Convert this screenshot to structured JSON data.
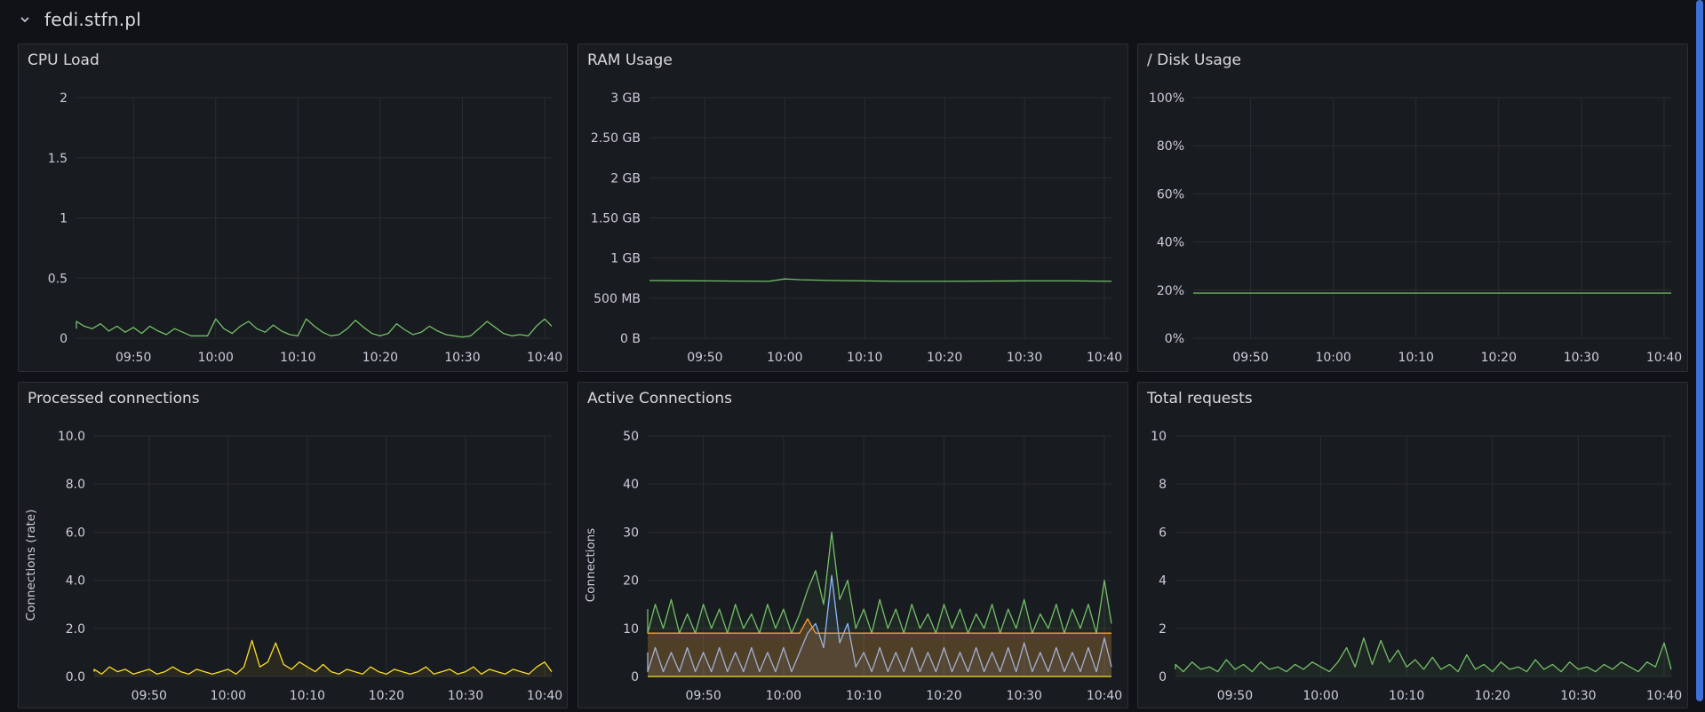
{
  "row": {
    "title": "fedi.stfn.pl",
    "collapse_icon": "chevron-down-icon"
  },
  "colors": {
    "green": "#73bf69",
    "yellow": "#fade2a",
    "blue": "#8ab8ff",
    "orange": "#ff9830",
    "grid": "#2a2d33"
  },
  "panels": [
    {
      "id": "cpu",
      "title": "CPU Load",
      "ylabel": "",
      "y_ticks": [
        {
          "v": 2,
          "l": "2"
        },
        {
          "v": 1.5,
          "l": "1.5"
        },
        {
          "v": 1,
          "l": "1"
        },
        {
          "v": 0.5,
          "l": "0.5"
        },
        {
          "v": 0,
          "l": "0"
        }
      ],
      "ylim": [
        0,
        2
      ],
      "x_ticks": [
        "09:50",
        "10:00",
        "10:10",
        "10:20",
        "10:30",
        "10:40"
      ],
      "chart_data": {
        "type": "line",
        "series": [
          {
            "color": "#73bf69",
            "x": [
              "09:42",
              "09:43",
              "09:44",
              "09:45",
              "09:46",
              "09:47",
              "09:48",
              "09:49",
              "09:50",
              "09:51",
              "09:52",
              "09:53",
              "09:54",
              "09:55",
              "09:56",
              "09:57",
              "09:58",
              "09:59",
              "10:00",
              "10:01",
              "10:02",
              "10:03",
              "10:04",
              "10:05",
              "10:06",
              "10:07",
              "10:08",
              "10:09",
              "10:10",
              "10:11",
              "10:12",
              "10:13",
              "10:14",
              "10:15",
              "10:16",
              "10:17",
              "10:18",
              "10:19",
              "10:20",
              "10:21",
              "10:22",
              "10:23",
              "10:24",
              "10:25",
              "10:26",
              "10:27",
              "10:28",
              "10:29",
              "10:30",
              "10:31",
              "10:32",
              "10:33",
              "10:34",
              "10:35",
              "10:36",
              "10:37",
              "10:38",
              "10:39",
              "10:40",
              "10:41"
            ],
            "values": [
              0.08,
              0.14,
              0.1,
              0.08,
              0.12,
              0.06,
              0.1,
              0.05,
              0.09,
              0.04,
              0.1,
              0.06,
              0.03,
              0.08,
              0.05,
              0.02,
              0.02,
              0.02,
              0.16,
              0.08,
              0.04,
              0.1,
              0.14,
              0.08,
              0.05,
              0.11,
              0.06,
              0.03,
              0.02,
              0.16,
              0.1,
              0.05,
              0.02,
              0.03,
              0.08,
              0.15,
              0.09,
              0.04,
              0.02,
              0.04,
              0.12,
              0.07,
              0.03,
              0.05,
              0.1,
              0.06,
              0.03,
              0.02,
              0.01,
              0.02,
              0.08,
              0.14,
              0.09,
              0.04,
              0.02,
              0.03,
              0.02,
              0.1,
              0.16,
              0.1
            ]
          }
        ]
      }
    },
    {
      "id": "ram",
      "title": "RAM Usage",
      "ylabel": "",
      "y_ticks": [
        {
          "v": 3,
          "l": "3 GB"
        },
        {
          "v": 2.5,
          "l": "2.50 GB"
        },
        {
          "v": 2,
          "l": "2 GB"
        },
        {
          "v": 1.5,
          "l": "1.50 GB"
        },
        {
          "v": 1,
          "l": "1 GB"
        },
        {
          "v": 0.5,
          "l": "500 MB"
        },
        {
          "v": 0,
          "l": "0 B"
        }
      ],
      "ylim": [
        0,
        3
      ],
      "x_ticks": [
        "09:50",
        "10:00",
        "10:10",
        "10:20",
        "10:30",
        "10:40"
      ],
      "chart_data": {
        "type": "line",
        "series": [
          {
            "color": "#73bf69",
            "x": [
              "09:42",
              "09:50",
              "09:58",
              "10:00",
              "10:02",
              "10:06",
              "10:10",
              "10:14",
              "10:20",
              "10:30",
              "10:36",
              "10:41"
            ],
            "values": [
              0.72,
              0.715,
              0.71,
              0.74,
              0.73,
              0.72,
              0.715,
              0.71,
              0.71,
              0.715,
              0.715,
              0.71
            ]
          }
        ]
      }
    },
    {
      "id": "disk",
      "title": "/ Disk Usage",
      "ylabel": "",
      "y_ticks": [
        {
          "v": 100,
          "l": "100%"
        },
        {
          "v": 80,
          "l": "80%"
        },
        {
          "v": 60,
          "l": "60%"
        },
        {
          "v": 40,
          "l": "40%"
        },
        {
          "v": 20,
          "l": "20%"
        },
        {
          "v": 0,
          "l": "0%"
        }
      ],
      "ylim": [
        0,
        100
      ],
      "x_ticks": [
        "09:50",
        "10:00",
        "10:10",
        "10:20",
        "10:30",
        "10:40"
      ],
      "chart_data": {
        "type": "line",
        "series": [
          {
            "color": "#73bf69",
            "x": [
              "09:42",
              "10:41"
            ],
            "values": [
              18.8,
              18.8
            ]
          }
        ]
      }
    },
    {
      "id": "proc",
      "title": "Processed connections",
      "ylabel": "Connections (rate)",
      "y_ticks": [
        {
          "v": 10,
          "l": "10.0"
        },
        {
          "v": 8,
          "l": "8.0"
        },
        {
          "v": 6,
          "l": "6.0"
        },
        {
          "v": 4,
          "l": "4.0"
        },
        {
          "v": 2,
          "l": "2.0"
        },
        {
          "v": 0,
          "l": "0.0"
        }
      ],
      "ylim": [
        0,
        10
      ],
      "x_ticks": [
        "09:50",
        "10:00",
        "10:10",
        "10:20",
        "10:30",
        "10:40"
      ],
      "chart_data": {
        "type": "area",
        "series": [
          {
            "color": "#fade2a",
            "x": [
              "09:42",
              "09:43",
              "09:44",
              "09:45",
              "09:46",
              "09:47",
              "09:48",
              "09:49",
              "09:50",
              "09:51",
              "09:52",
              "09:53",
              "09:54",
              "09:55",
              "09:56",
              "09:57",
              "09:58",
              "09:59",
              "10:00",
              "10:01",
              "10:02",
              "10:03",
              "10:04",
              "10:05",
              "10:06",
              "10:07",
              "10:08",
              "10:09",
              "10:10",
              "10:11",
              "10:12",
              "10:13",
              "10:14",
              "10:15",
              "10:16",
              "10:17",
              "10:18",
              "10:19",
              "10:20",
              "10:21",
              "10:22",
              "10:23",
              "10:24",
              "10:25",
              "10:26",
              "10:27",
              "10:28",
              "10:29",
              "10:30",
              "10:31",
              "10:32",
              "10:33",
              "10:34",
              "10:35",
              "10:36",
              "10:37",
              "10:38",
              "10:39",
              "10:40",
              "10:41"
            ],
            "values": [
              0.2,
              0.3,
              0.1,
              0.4,
              0.2,
              0.3,
              0.1,
              0.2,
              0.3,
              0.1,
              0.2,
              0.4,
              0.2,
              0.1,
              0.3,
              0.2,
              0.1,
              0.2,
              0.3,
              0.1,
              0.4,
              1.5,
              0.4,
              0.6,
              1.4,
              0.5,
              0.3,
              0.6,
              0.4,
              0.2,
              0.5,
              0.2,
              0.1,
              0.3,
              0.2,
              0.1,
              0.4,
              0.2,
              0.1,
              0.3,
              0.2,
              0.1,
              0.2,
              0.4,
              0.1,
              0.2,
              0.3,
              0.1,
              0.2,
              0.4,
              0.1,
              0.3,
              0.2,
              0.1,
              0.3,
              0.2,
              0.1,
              0.4,
              0.6,
              0.2
            ]
          }
        ]
      }
    },
    {
      "id": "active",
      "title": "Active Connections",
      "ylabel": "Connections",
      "y_ticks": [
        {
          "v": 50,
          "l": "50"
        },
        {
          "v": 40,
          "l": "40"
        },
        {
          "v": 30,
          "l": "30"
        },
        {
          "v": 20,
          "l": "20"
        },
        {
          "v": 10,
          "l": "10"
        },
        {
          "v": 0,
          "l": "0"
        }
      ],
      "ylim": [
        0,
        50
      ],
      "x_ticks": [
        "09:50",
        "10:00",
        "10:10",
        "10:20",
        "10:30",
        "10:40"
      ],
      "chart_data": {
        "type": "area",
        "series": [
          {
            "color": "#73bf69",
            "x": [
              "09:42",
              "09:43",
              "09:44",
              "09:45",
              "09:46",
              "09:47",
              "09:48",
              "09:49",
              "09:50",
              "09:51",
              "09:52",
              "09:53",
              "09:54",
              "09:55",
              "09:56",
              "09:57",
              "09:58",
              "09:59",
              "10:00",
              "10:01",
              "10:02",
              "10:03",
              "10:04",
              "10:05",
              "10:06",
              "10:07",
              "10:08",
              "10:09",
              "10:10",
              "10:11",
              "10:12",
              "10:13",
              "10:14",
              "10:15",
              "10:16",
              "10:17",
              "10:18",
              "10:19",
              "10:20",
              "10:21",
              "10:22",
              "10:23",
              "10:24",
              "10:25",
              "10:26",
              "10:27",
              "10:28",
              "10:29",
              "10:30",
              "10:31",
              "10:32",
              "10:33",
              "10:34",
              "10:35",
              "10:36",
              "10:37",
              "10:38",
              "10:39",
              "10:40",
              "10:41"
            ],
            "values": [
              14,
              9,
              15,
              10,
              16,
              9,
              13,
              9,
              15,
              10,
              14,
              9,
              15,
              10,
              13,
              9,
              15,
              10,
              14,
              9,
              13,
              18,
              22,
              15,
              30,
              16,
              20,
              10,
              14,
              9,
              16,
              10,
              14,
              9,
              15,
              10,
              13,
              9,
              15,
              10,
              14,
              9,
              13,
              10,
              15,
              9,
              14,
              10,
              16,
              9,
              13,
              10,
              15,
              9,
              14,
              10,
              15,
              9,
              20,
              11
            ]
          },
          {
            "color": "#8ab8ff",
            "x": [
              "09:42",
              "09:43",
              "09:44",
              "09:45",
              "09:46",
              "09:47",
              "09:48",
              "09:49",
              "09:50",
              "09:51",
              "09:52",
              "09:53",
              "09:54",
              "09:55",
              "09:56",
              "09:57",
              "09:58",
              "09:59",
              "10:00",
              "10:01",
              "10:02",
              "10:03",
              "10:04",
              "10:05",
              "10:06",
              "10:07",
              "10:08",
              "10:09",
              "10:10",
              "10:11",
              "10:12",
              "10:13",
              "10:14",
              "10:15",
              "10:16",
              "10:17",
              "10:18",
              "10:19",
              "10:20",
              "10:21",
              "10:22",
              "10:23",
              "10:24",
              "10:25",
              "10:26",
              "10:27",
              "10:28",
              "10:29",
              "10:30",
              "10:31",
              "10:32",
              "10:33",
              "10:34",
              "10:35",
              "10:36",
              "10:37",
              "10:38",
              "10:39",
              "10:40",
              "10:41"
            ],
            "values": [
              5,
              1,
              6,
              1,
              5,
              1,
              6,
              1,
              5,
              1,
              6,
              1,
              5,
              1,
              6,
              1,
              5,
              1,
              6,
              1,
              5,
              9,
              11,
              6,
              21,
              7,
              11,
              2,
              5,
              1,
              6,
              1,
              5,
              1,
              6,
              1,
              5,
              1,
              6,
              1,
              5,
              1,
              6,
              1,
              5,
              1,
              6,
              1,
              7,
              1,
              5,
              1,
              6,
              1,
              5,
              1,
              6,
              1,
              8,
              2
            ]
          },
          {
            "color": "#ff9830",
            "x": [
              "09:42",
              "10:00",
              "10:02",
              "10:03",
              "10:04",
              "10:05",
              "10:41"
            ],
            "values": [
              9,
              9,
              9,
              12,
              9,
              9,
              9
            ]
          },
          {
            "color": "#fade2a",
            "x": [
              "09:42",
              "10:41"
            ],
            "values": [
              0,
              0
            ]
          }
        ]
      }
    },
    {
      "id": "total",
      "title": "Total requests",
      "ylabel": "",
      "y_ticks": [
        {
          "v": 10,
          "l": "10"
        },
        {
          "v": 8,
          "l": "8"
        },
        {
          "v": 6,
          "l": "6"
        },
        {
          "v": 4,
          "l": "4"
        },
        {
          "v": 2,
          "l": "2"
        },
        {
          "v": 0,
          "l": "0"
        }
      ],
      "ylim": [
        0,
        10
      ],
      "x_ticks": [
        "09:50",
        "10:00",
        "10:10",
        "10:20",
        "10:30",
        "10:40"
      ],
      "chart_data": {
        "type": "area",
        "series": [
          {
            "color": "#73bf69",
            "x": [
              "09:42",
              "09:43",
              "09:44",
              "09:45",
              "09:46",
              "09:47",
              "09:48",
              "09:49",
              "09:50",
              "09:51",
              "09:52",
              "09:53",
              "09:54",
              "09:55",
              "09:56",
              "09:57",
              "09:58",
              "09:59",
              "10:00",
              "10:01",
              "10:02",
              "10:03",
              "10:04",
              "10:05",
              "10:06",
              "10:07",
              "10:08",
              "10:09",
              "10:10",
              "10:11",
              "10:12",
              "10:13",
              "10:14",
              "10:15",
              "10:16",
              "10:17",
              "10:18",
              "10:19",
              "10:20",
              "10:21",
              "10:22",
              "10:23",
              "10:24",
              "10:25",
              "10:26",
              "10:27",
              "10:28",
              "10:29",
              "10:30",
              "10:31",
              "10:32",
              "10:33",
              "10:34",
              "10:35",
              "10:36",
              "10:37",
              "10:38",
              "10:39",
              "10:40",
              "10:41"
            ],
            "values": [
              0.3,
              0.5,
              0.2,
              0.6,
              0.3,
              0.4,
              0.2,
              0.7,
              0.3,
              0.5,
              0.2,
              0.6,
              0.3,
              0.4,
              0.2,
              0.5,
              0.3,
              0.6,
              0.4,
              0.2,
              0.6,
              1.2,
              0.4,
              1.6,
              0.5,
              1.5,
              0.6,
              1.1,
              0.4,
              0.7,
              0.3,
              0.8,
              0.3,
              0.5,
              0.2,
              0.9,
              0.3,
              0.5,
              0.2,
              0.6,
              0.3,
              0.4,
              0.2,
              0.7,
              0.3,
              0.5,
              0.2,
              0.6,
              0.3,
              0.4,
              0.2,
              0.5,
              0.3,
              0.6,
              0.4,
              0.2,
              0.6,
              0.4,
              1.4,
              0.3
            ]
          }
        ]
      }
    }
  ]
}
